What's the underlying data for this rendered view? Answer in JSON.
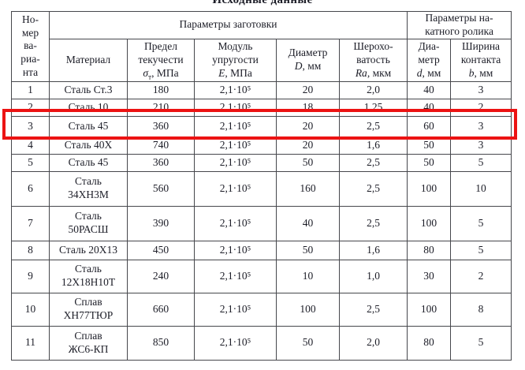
{
  "title": "Исходные данные",
  "accent_red": "#ec1313",
  "table": {
    "col_variant": "Но-\nмер\nва-\nриа-\nнта",
    "group_workpiece": "Параметры заготовки",
    "group_roller": "Параметры на-\nкатного ролика",
    "headers": {
      "material": "Материал",
      "yield": {
        "lines": "Предел\nтекучести",
        "sym": "σ",
        "sub": "т",
        "unit": ", МПа"
      },
      "modulus": {
        "lines": "Модуль\nупругости",
        "sym": "E",
        "unit": ", МПа"
      },
      "diameter": {
        "lines": "Диаметр",
        "sym": "D",
        "unit": ", мм"
      },
      "roughness": {
        "lines": "Шерохо-\nватость",
        "sym": "Ra",
        "unit": ", мкм"
      },
      "roller_d": {
        "lines": "Диа-\nметр",
        "sym": "d",
        "unit": ", мм"
      },
      "width_b": {
        "lines": "Ширина\nконтакта",
        "sym": "b",
        "unit": ", мм"
      }
    },
    "highlighted_row": 3,
    "rows": [
      {
        "num": "1",
        "material": "Сталь Ст.3",
        "yield": "180",
        "modulus": "2,1·10⁵",
        "diameter": "20",
        "roughness": "2,0",
        "roller_d": "40",
        "width_b": "3"
      },
      {
        "num": "2",
        "material": "Сталь 10",
        "yield": "210",
        "modulus": "2,1·10⁵",
        "diameter": "18",
        "roughness": "1,25",
        "roller_d": "40",
        "width_b": "2"
      },
      {
        "num": "3",
        "material": "Сталь 45",
        "yield": "360",
        "modulus": "2,1·10⁵",
        "diameter": "20",
        "roughness": "2,5",
        "roller_d": "60",
        "width_b": "3"
      },
      {
        "num": "4",
        "material": "Сталь 40Х",
        "yield": "740",
        "modulus": "2,1·10⁵",
        "diameter": "20",
        "roughness": "1,6",
        "roller_d": "50",
        "width_b": "3"
      },
      {
        "num": "5",
        "material": "Сталь 45",
        "yield": "360",
        "modulus": "2,1·10⁵",
        "diameter": "50",
        "roughness": "2,5",
        "roller_d": "50",
        "width_b": "5"
      },
      {
        "num": "6",
        "material": "Сталь\n34ХН3М",
        "yield": "560",
        "modulus": "2,1·10⁵",
        "diameter": "160",
        "roughness": "2,5",
        "roller_d": "100",
        "width_b": "10"
      },
      {
        "num": "7",
        "material": "Сталь\n50РАСШ",
        "yield": "390",
        "modulus": "2,1·10⁵",
        "diameter": "40",
        "roughness": "2,5",
        "roller_d": "100",
        "width_b": "5"
      },
      {
        "num": "8",
        "material": "Сталь 20Х13",
        "yield": "450",
        "modulus": "2,1·10⁵",
        "diameter": "50",
        "roughness": "1,6",
        "roller_d": "80",
        "width_b": "5"
      },
      {
        "num": "9",
        "material": "Сталь\n12Х18Н10Т",
        "yield": "240",
        "modulus": "2,1·10⁵",
        "diameter": "10",
        "roughness": "1,0",
        "roller_d": "30",
        "width_b": "2"
      },
      {
        "num": "10",
        "material": "Сплав\nХН77ТЮР",
        "yield": "660",
        "modulus": "2,1·10⁵",
        "diameter": "100",
        "roughness": "2,5",
        "roller_d": "100",
        "width_b": "8"
      },
      {
        "num": "11",
        "material": "Сплав\nЖС6-КП",
        "yield": "850",
        "modulus": "2,1·10⁵",
        "diameter": "50",
        "roughness": "2,0",
        "roller_d": "80",
        "width_b": "5"
      }
    ]
  }
}
